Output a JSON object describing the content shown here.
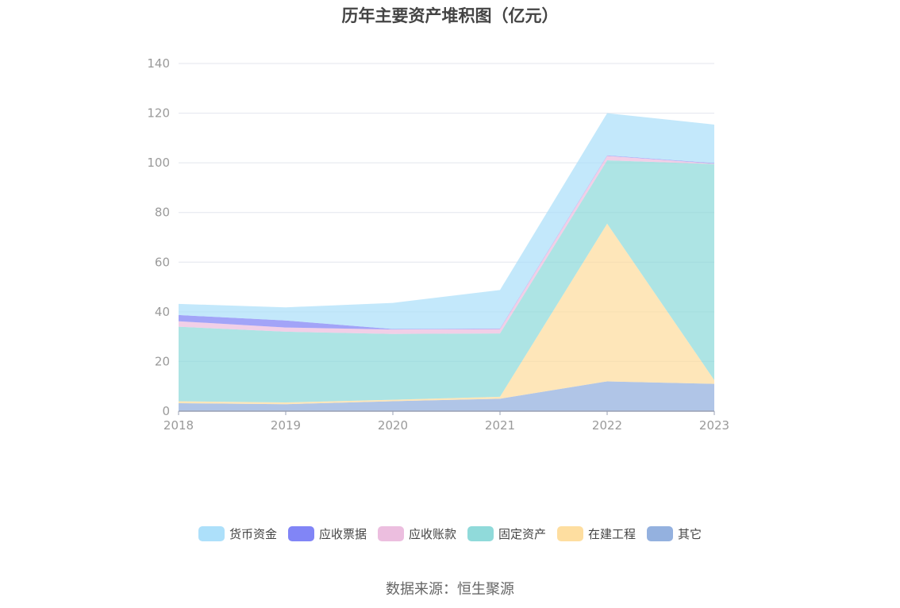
{
  "chart_data": {
    "type": "area",
    "stacked": true,
    "title": "历年主要资产堆积图（亿元）",
    "categories": [
      "2018",
      "2019",
      "2020",
      "2021",
      "2022",
      "2023"
    ],
    "ylim": [
      0,
      140
    ],
    "yticks": [
      "0",
      "20",
      "40",
      "60",
      "80",
      "100",
      "120",
      "140"
    ],
    "grid": true,
    "legend_position": "bottom",
    "series": [
      {
        "name": "其它",
        "color": "#8eaddd",
        "values": [
          3.2,
          2.8,
          4.0,
          5.0,
          12.0,
          11.0
        ]
      },
      {
        "name": "在建工程",
        "color": "#fedc9b",
        "values": [
          0.8,
          0.7,
          0.6,
          0.8,
          63.5,
          1.5
        ]
      },
      {
        "name": "固定资产",
        "color": "#8ad8d8",
        "values": [
          30.0,
          28.5,
          26.5,
          25.5,
          25.5,
          87.0
        ]
      },
      {
        "name": "应收账款",
        "color": "#ebbbdd",
        "values": [
          2.2,
          1.7,
          1.8,
          1.8,
          1.8,
          0.2
        ]
      },
      {
        "name": "应收票据",
        "color": "#7a7ef5",
        "values": [
          2.5,
          2.8,
          0.2,
          0.2,
          0.2,
          0.2
        ]
      },
      {
        "name": "货币资金",
        "color": "#a9defa",
        "values": [
          4.5,
          5.3,
          10.5,
          15.5,
          17.0,
          15.5
        ]
      }
    ],
    "legend_order": [
      "货币资金",
      "应收票据",
      "应收账款",
      "固定资产",
      "在建工程",
      "其它"
    ]
  },
  "source": "数据来源：恒生聚源"
}
